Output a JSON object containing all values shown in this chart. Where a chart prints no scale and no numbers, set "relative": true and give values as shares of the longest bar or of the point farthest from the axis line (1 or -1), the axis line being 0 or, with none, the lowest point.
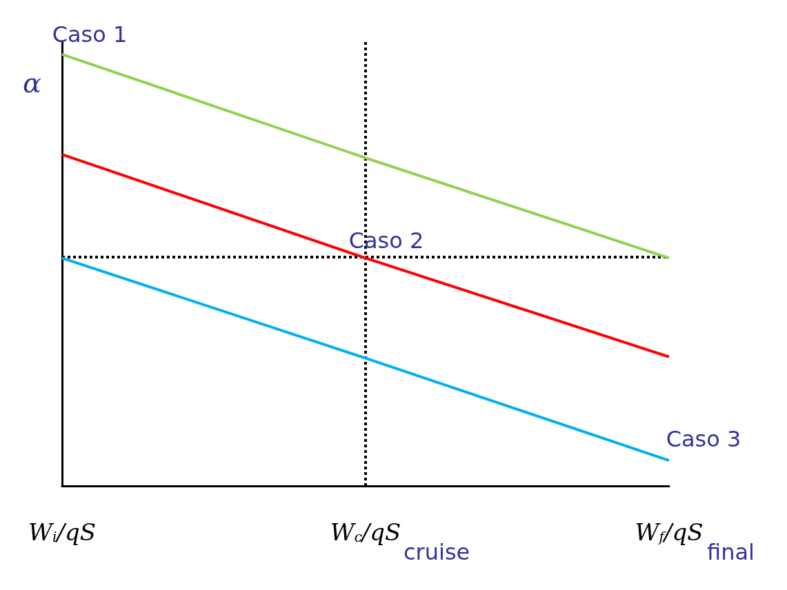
{
  "chart_data": {
    "type": "line",
    "relative": true,
    "ylabel": "α",
    "categories": [
      "W$_{i}$/qS",
      "W$_{c}$/qS",
      "W$_{f}$/qS"
    ],
    "series": [
      {
        "name": "Caso 1",
        "color": "#92d050",
        "values": [
          1,
          0.76,
          0.528
        ]
      },
      {
        "name": "Caso 2",
        "color": "#ff0000",
        "values": [
          0.768,
          0.528,
          0.299
        ]
      },
      {
        "name": "Caso 3",
        "color": "#00b0f0",
        "values": [
          0.528,
          0.296,
          0.059
        ]
      }
    ],
    "ref_lines": [
      {
        "axis": "x",
        "value": "W$_{c}$/qS",
        "color": "#000000",
        "line_style": "dotted"
      },
      {
        "axis": "y",
        "value": 0.528,
        "color": "#000000",
        "line_style": "dotted"
      }
    ],
    "annotations": [
      "cruise",
      "final"
    ],
    "grid": false,
    "legend": false,
    "marker": "none",
    "line_style": "solid"
  }
}
